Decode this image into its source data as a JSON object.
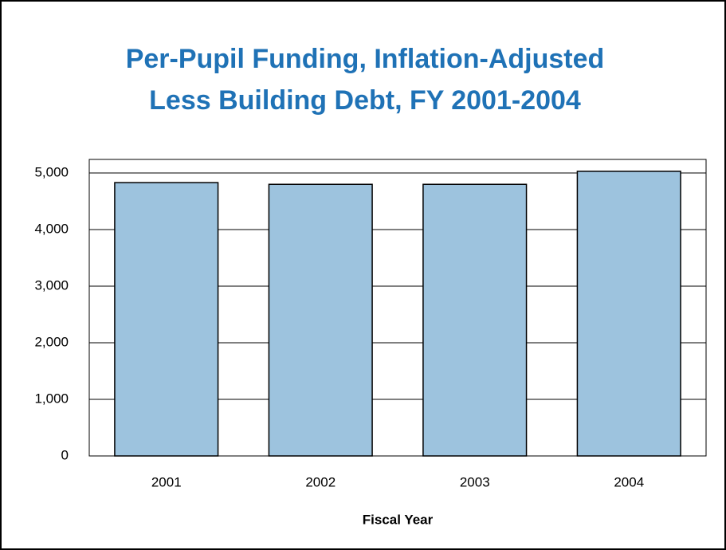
{
  "chart_data": {
    "type": "bar",
    "title": [
      "Per-Pupil Funding, Inflation-Adjusted",
      "Less Building Debt, FY 2001-2004"
    ],
    "x_label": "Fiscal Year",
    "categories": [
      "2001",
      "2002",
      "2003",
      "2004"
    ],
    "values": [
      4830,
      4800,
      4800,
      5030
    ],
    "color": "#9dc3de",
    "ylim": [
      0,
      5240
    ],
    "yticks": [
      0,
      {
        "value": 1000,
        "label": "1,000"
      },
      {
        "value": 2000,
        "label": "2,000"
      },
      {
        "value": 3000,
        "label": "3,000"
      },
      {
        "value": 4000,
        "label": "4,000"
      },
      {
        "value": 5000,
        "label": "5,000"
      }
    ],
    "grid": true
  }
}
